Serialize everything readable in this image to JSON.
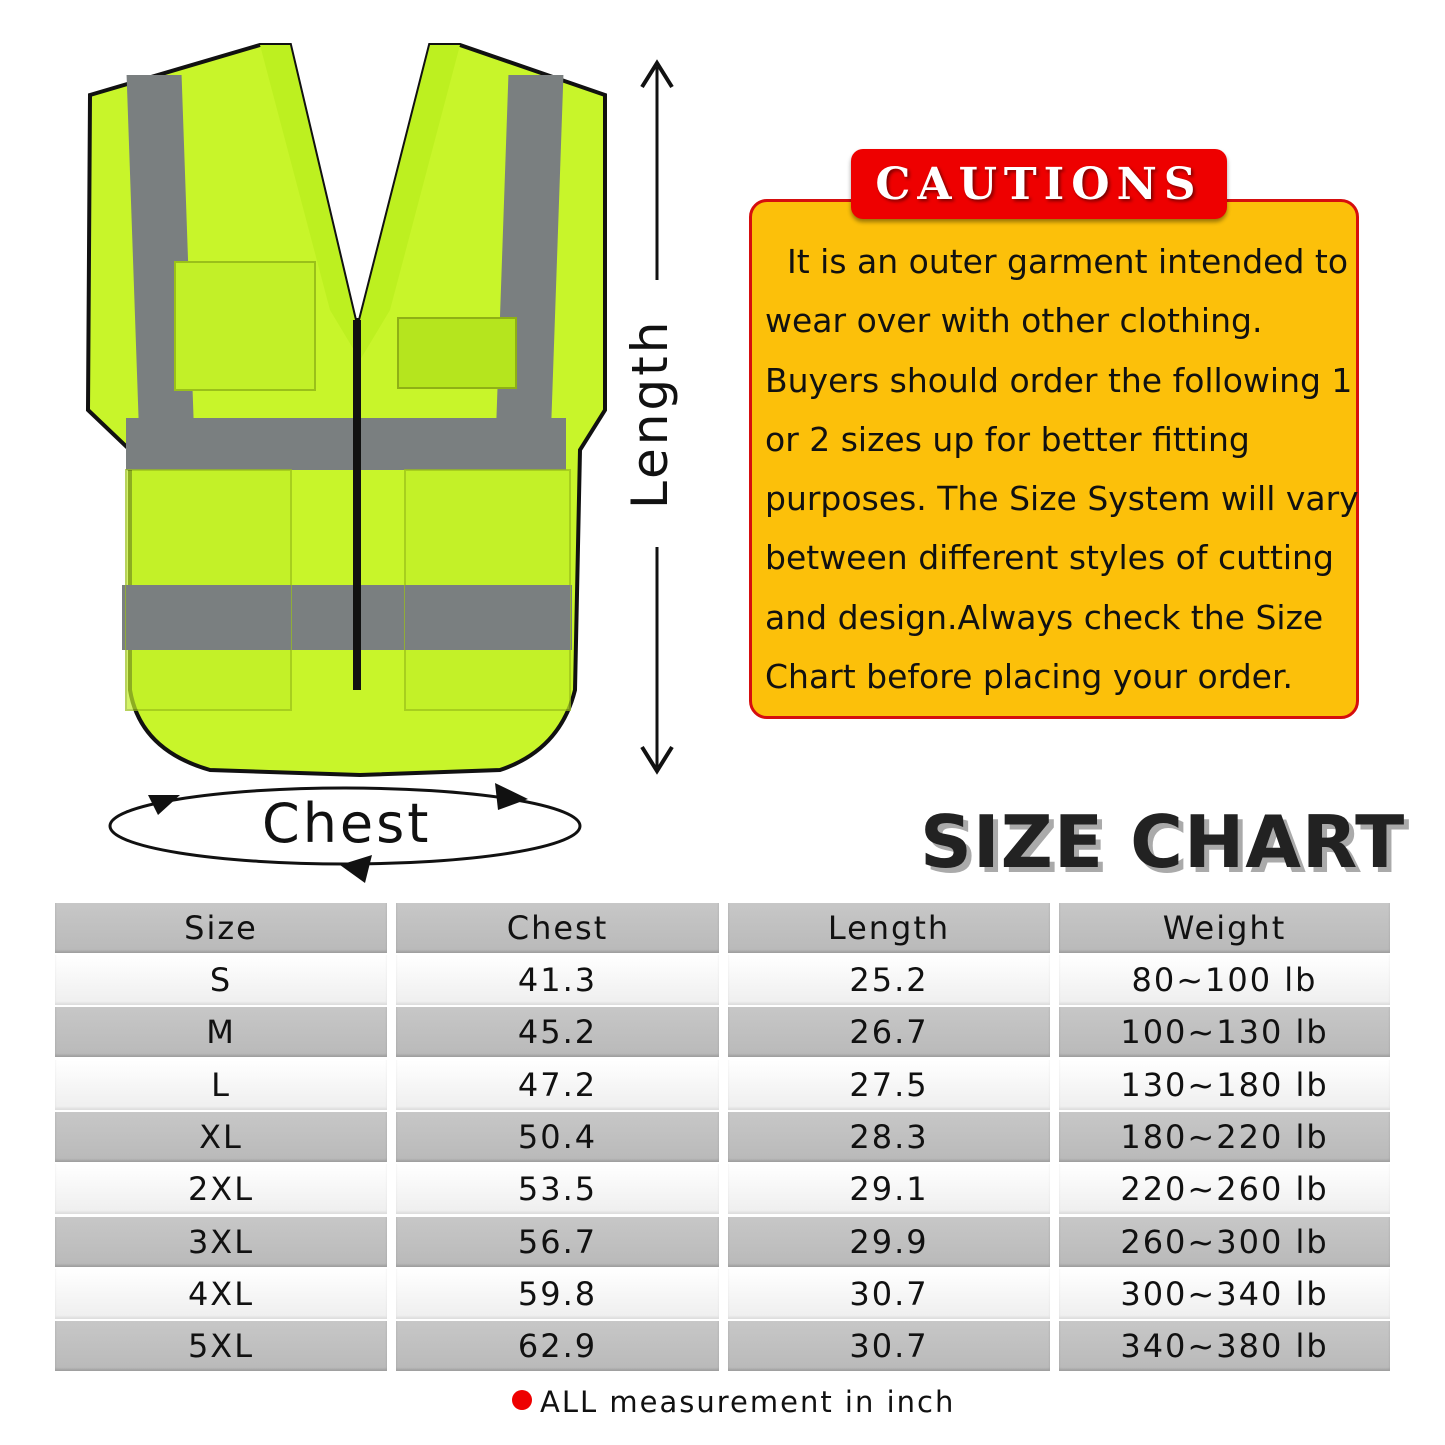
{
  "figure": {
    "length_label": "Length",
    "chest_label": "Chest",
    "vest_color": "#c8f52a",
    "stripe_color": "#7a7f80"
  },
  "cautions": {
    "title": "CAUTIONS",
    "lines": [
      "  It is an outer garment intended to",
      "wear over with other clothing.",
      "Buyers should order the following 1",
      "or 2 sizes up for better fitting",
      "purposes. The Size System will vary",
      "between different styles of cutting",
      "and design.Always check the Size",
      "Chart before placing your order."
    ],
    "box_color": "#fcc00a",
    "title_color": "#ee0000"
  },
  "size_chart": {
    "title": "SIZE CHART",
    "headers": [
      "Size",
      "Chest",
      "Length",
      "Weight"
    ],
    "rows": [
      [
        "S",
        "41.3",
        "25.2",
        "80~100 lb"
      ],
      [
        "M",
        "45.2",
        "26.7",
        "100~130 lb"
      ],
      [
        "L",
        "47.2",
        "27.5",
        "130~180 lb"
      ],
      [
        "XL",
        "50.4",
        "28.3",
        "180~220 lb"
      ],
      [
        "2XL",
        "53.5",
        "29.1",
        "220~260 lb"
      ],
      [
        "3XL",
        "56.7",
        "29.9",
        "260~300 lb"
      ],
      [
        "4XL",
        "59.8",
        "30.7",
        "300~340 lb"
      ],
      [
        "5XL",
        "62.9",
        "30.7",
        "340~380 lb"
      ]
    ],
    "note": "ALL measurement in inch"
  }
}
